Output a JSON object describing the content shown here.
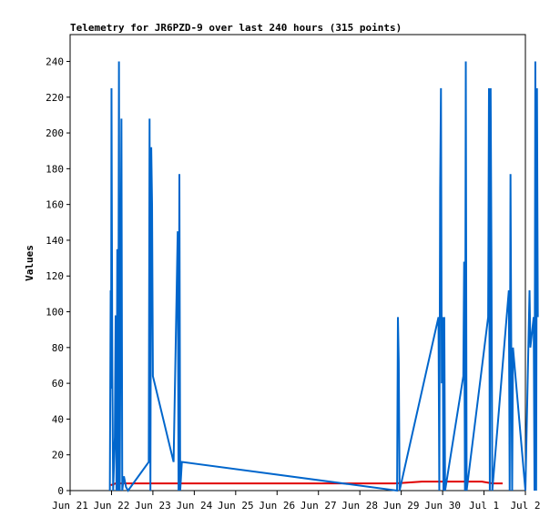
{
  "chart_data": {
    "type": "line",
    "title": "Telemetry for JR6PZD-9 over last 240 hours (315 points)",
    "xlabel": "",
    "ylabel": "Values",
    "xlim": [
      0,
      11
    ],
    "ylim": [
      0,
      255
    ],
    "x_ticks": [
      {
        "x": 0,
        "label": "Jun 21"
      },
      {
        "x": 1,
        "label": "Jun 22"
      },
      {
        "x": 2,
        "label": "Jun 23"
      },
      {
        "x": 3,
        "label": "Jun 24"
      },
      {
        "x": 4,
        "label": "Jun 25"
      },
      {
        "x": 5,
        "label": "Jun 26"
      },
      {
        "x": 6,
        "label": "Jun 27"
      },
      {
        "x": 7,
        "label": "Jun 28"
      },
      {
        "x": 8,
        "label": "Jun 29"
      },
      {
        "x": 9,
        "label": "Jun 30"
      },
      {
        "x": 10,
        "label": "Jul 1"
      },
      {
        "x": 11,
        "label": "Jul 2"
      }
    ],
    "y_ticks": [
      0,
      20,
      40,
      60,
      80,
      100,
      120,
      140,
      160,
      180,
      200,
      220,
      240
    ],
    "grid": false,
    "legend": "none",
    "series": [
      {
        "color": "#e00000",
        "points": [
          [
            0.98,
            3
          ],
          [
            1.1,
            4
          ],
          [
            2.0,
            4
          ],
          [
            3.0,
            4
          ],
          [
            5.0,
            4
          ],
          [
            7.0,
            4
          ],
          [
            7.85,
            4
          ],
          [
            8.5,
            5
          ],
          [
            9.0,
            5
          ],
          [
            9.5,
            5
          ],
          [
            9.95,
            5
          ],
          [
            10.2,
            4
          ],
          [
            10.45,
            4
          ]
        ]
      },
      {
        "color": "#0066cc",
        "points": [
          [
            0.96,
            0
          ],
          [
            0.98,
            112
          ],
          [
            0.99,
            57
          ],
          [
            1.0,
            225
          ],
          [
            1.02,
            65
          ],
          [
            1.04,
            0
          ],
          [
            1.08,
            30
          ],
          [
            1.1,
            98
          ],
          [
            1.12,
            0
          ],
          [
            1.14,
            135
          ],
          [
            1.16,
            0
          ],
          [
            1.18,
            240
          ],
          [
            1.2,
            0
          ],
          [
            1.22,
            112
          ],
          [
            1.24,
            208
          ],
          [
            1.26,
            0
          ],
          [
            1.3,
            8
          ],
          [
            1.35,
            2
          ],
          [
            1.4,
            0
          ],
          [
            1.9,
            16
          ],
          [
            1.92,
            208
          ],
          [
            1.94,
            0
          ],
          [
            1.96,
            192
          ],
          [
            1.98,
            160
          ],
          [
            2.0,
            64
          ],
          [
            2.5,
            16
          ],
          [
            2.6,
            145
          ],
          [
            2.62,
            0
          ],
          [
            2.64,
            177
          ],
          [
            2.66,
            0
          ],
          [
            2.7,
            16
          ],
          [
            7.9,
            0
          ],
          [
            7.92,
            97
          ],
          [
            7.94,
            72
          ],
          [
            7.96,
            0
          ],
          [
            8.9,
            97
          ],
          [
            8.92,
            0
          ],
          [
            8.94,
            168
          ],
          [
            8.96,
            225
          ],
          [
            8.98,
            60
          ],
          [
            9.0,
            97
          ],
          [
            9.02,
            0
          ],
          [
            9.04,
            97
          ],
          [
            9.06,
            0
          ],
          [
            9.5,
            64
          ],
          [
            9.52,
            128
          ],
          [
            9.54,
            0
          ],
          [
            9.56,
            240
          ],
          [
            9.58,
            0
          ],
          [
            10.1,
            97
          ],
          [
            10.12,
            225
          ],
          [
            10.14,
            0
          ],
          [
            10.16,
            225
          ],
          [
            10.18,
            128
          ],
          [
            10.2,
            0
          ],
          [
            10.6,
            112
          ],
          [
            10.62,
            0
          ],
          [
            10.64,
            177
          ],
          [
            10.66,
            72
          ],
          [
            10.68,
            0
          ],
          [
            10.7,
            80
          ],
          [
            11.0,
            0
          ],
          [
            11.1,
            112
          ],
          [
            11.12,
            80
          ],
          [
            11.2,
            97
          ],
          [
            11.22,
            0
          ],
          [
            11.24,
            240
          ],
          [
            11.26,
            0
          ],
          [
            11.28,
            225
          ],
          [
            11.3,
            97
          ]
        ]
      }
    ]
  }
}
